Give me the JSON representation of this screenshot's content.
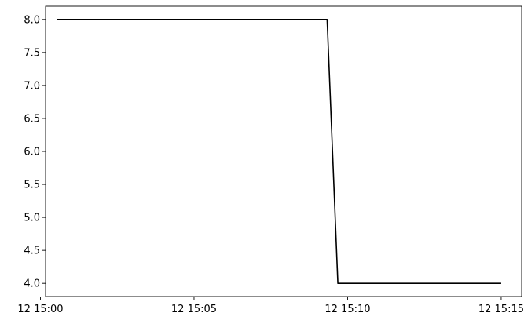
{
  "chart_data": {
    "type": "line",
    "title": "",
    "xlabel": "",
    "ylabel": "",
    "x_axis_kind": "time",
    "xlim": [
      "2024-01-12T15:00:10",
      "2024-01-12T15:15:40"
    ],
    "ylim": [
      3.8,
      8.2
    ],
    "x_ticks": [
      {
        "value": "2024-01-12T15:00:00",
        "label": "12 15:00"
      },
      {
        "value": "2024-01-12T15:05:00",
        "label": "12 15:05"
      },
      {
        "value": "2024-01-12T15:10:00",
        "label": "12 15:10"
      },
      {
        "value": "2024-01-12T15:15:00",
        "label": "12 15:15"
      }
    ],
    "y_ticks": [
      {
        "value": 4.0,
        "label": "4.0"
      },
      {
        "value": 4.5,
        "label": "4.5"
      },
      {
        "value": 5.0,
        "label": "5.0"
      },
      {
        "value": 5.5,
        "label": "5.5"
      },
      {
        "value": 6.0,
        "label": "6.0"
      },
      {
        "value": 6.5,
        "label": "6.5"
      },
      {
        "value": 7.0,
        "label": "7.0"
      },
      {
        "value": 7.5,
        "label": "7.5"
      },
      {
        "value": 8.0,
        "label": "8.0"
      }
    ],
    "series": [
      {
        "color": "#000000",
        "points": [
          {
            "x": "2024-01-12T15:00:32",
            "y": 8.0
          },
          {
            "x": "2024-01-12T15:09:20",
            "y": 8.0
          },
          {
            "x": "2024-01-12T15:09:41",
            "y": 4.0
          },
          {
            "x": "2024-01-12T15:15:00",
            "y": 4.0
          }
        ]
      }
    ],
    "grid": false,
    "legend": "none"
  }
}
